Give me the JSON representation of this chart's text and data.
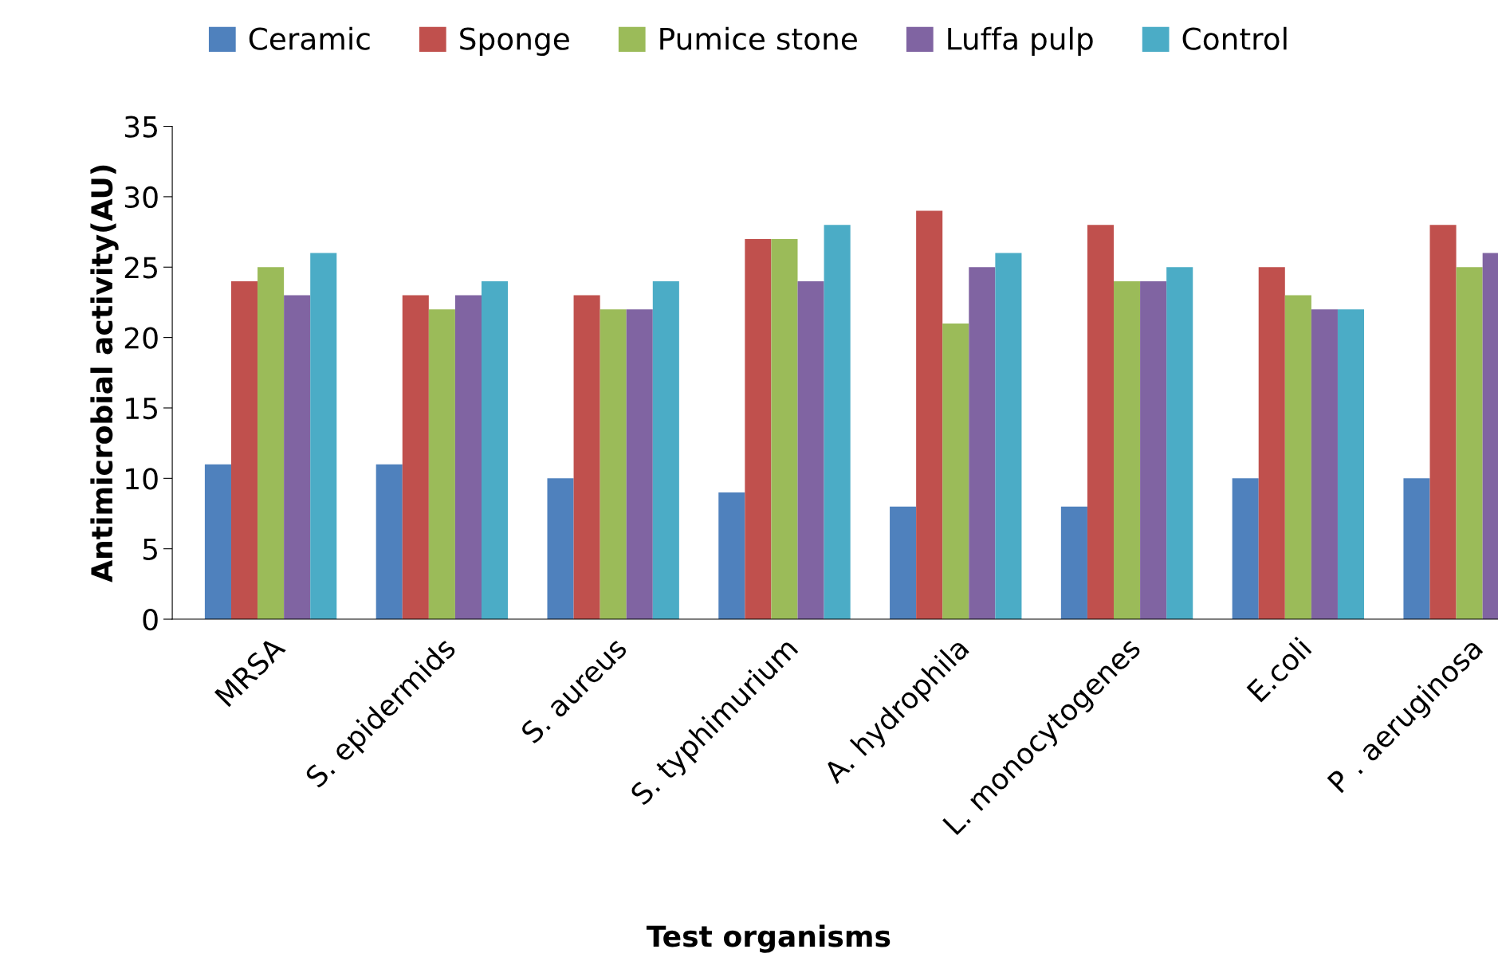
{
  "chart_data": {
    "type": "bar",
    "xlabel": "Test organisms",
    "ylabel": "Antimicrobial activity(AU)",
    "categories": [
      "MRSA",
      "S. epidermids",
      "S. aureus",
      "S. typhimurium",
      "A. hydrophila",
      "L. monocytogenes",
      "E.coli",
      "P . aeruginosa"
    ],
    "series": [
      {
        "name": "Ceramic",
        "color": "#4f81bd",
        "values": [
          11,
          11,
          10,
          9,
          8,
          8,
          10,
          10
        ]
      },
      {
        "name": "Sponge",
        "color": "#c0504d",
        "values": [
          24,
          23,
          23,
          27,
          29,
          28,
          25,
          28
        ]
      },
      {
        "name": "Pumice stone",
        "color": "#9bbb59",
        "values": [
          25,
          22,
          22,
          27,
          21,
          24,
          23,
          25
        ]
      },
      {
        "name": "Luffa pulp",
        "color": "#8064a2",
        "values": [
          23,
          23,
          22,
          24,
          25,
          24,
          22,
          26
        ]
      },
      {
        "name": "Control",
        "color": "#4bacc6",
        "values": [
          26,
          24,
          24,
          28,
          26,
          25,
          22,
          null
        ]
      }
    ],
    "ylim": [
      0,
      35
    ],
    "yticks": [
      0,
      5,
      10,
      15,
      20,
      25,
      30,
      35
    ],
    "grid": false,
    "legend": "top"
  }
}
